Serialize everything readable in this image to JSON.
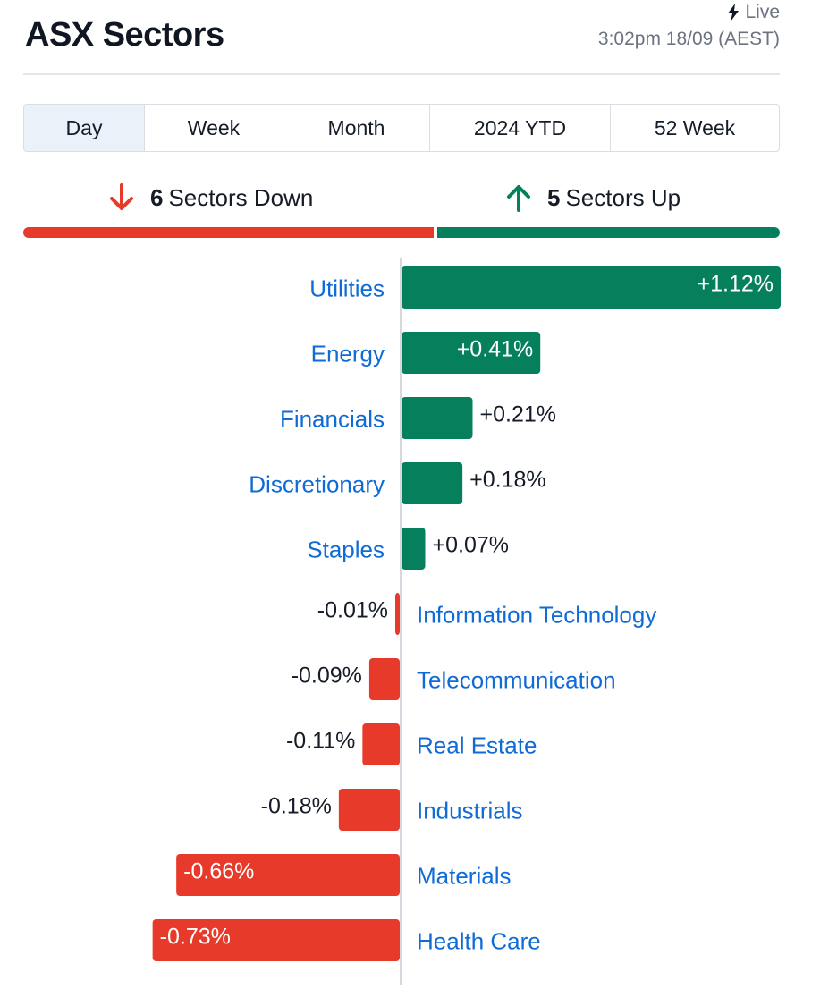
{
  "header": {
    "title": "ASX Sectors",
    "live_label": "Live",
    "timestamp": "3:02pm 18/09 (AEST)"
  },
  "tabs": [
    {
      "label": "Day",
      "active": true
    },
    {
      "label": "Week",
      "active": false
    },
    {
      "label": "Month",
      "active": false
    },
    {
      "label": "2024 YTD",
      "active": false
    },
    {
      "label": "52 Week",
      "active": false
    }
  ],
  "summary": {
    "down_count": "6",
    "down_label": "Sectors Down",
    "up_count": "5",
    "up_label": "Sectors Up"
  },
  "colors": {
    "positive": "#06805c",
    "negative": "#e73a2a",
    "link": "#0f6bd6"
  },
  "chart_data": {
    "type": "bar",
    "orientation": "horizontal",
    "categories": [
      "Utilities",
      "Energy",
      "Financials",
      "Discretionary",
      "Staples",
      "Information Technology",
      "Telecommunication",
      "Real Estate",
      "Industrials",
      "Materials",
      "Health Care"
    ],
    "values": [
      1.12,
      0.41,
      0.21,
      0.18,
      0.07,
      -0.01,
      -0.09,
      -0.11,
      -0.18,
      -0.66,
      -0.73
    ],
    "labels": [
      "+1.12%",
      "+0.41%",
      "+0.21%",
      "+0.18%",
      "+0.07%",
      "-0.01%",
      "-0.09%",
      "-0.11%",
      "-0.18%",
      "-0.66%",
      "-0.73%"
    ],
    "unit": "%"
  }
}
